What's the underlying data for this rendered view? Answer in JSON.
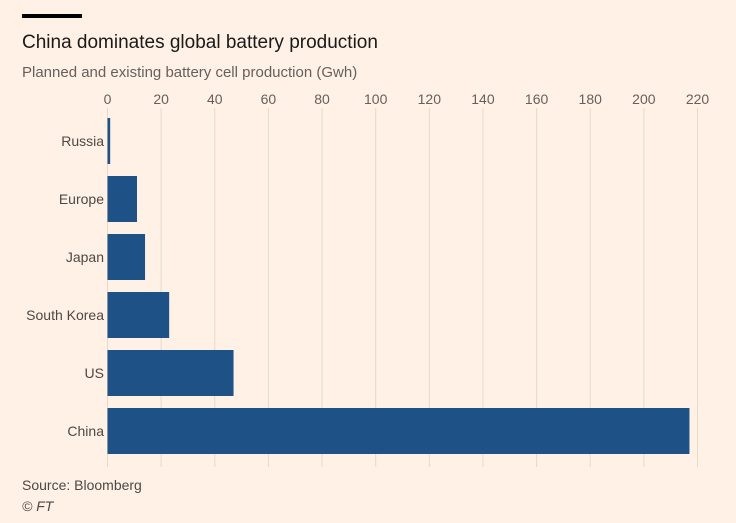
{
  "header": {
    "title": "China dominates global battery production",
    "subtitle": "Planned and existing battery cell production (Gwh)"
  },
  "footer": {
    "source": "Source: Bloomberg",
    "copyright": "© FT"
  },
  "colors": {
    "bar": "#1E5287",
    "background": "#FFF1E5",
    "grid": "#E6D9CE"
  },
  "chart_data": {
    "type": "bar",
    "orientation": "horizontal",
    "title": "China dominates global battery production",
    "subtitle": "Planned and existing battery cell production (Gwh)",
    "xlabel": "",
    "ylabel": "",
    "categories": [
      "Russia",
      "Europe",
      "Japan",
      "South Korea",
      "US",
      "China"
    ],
    "values": [
      1,
      11,
      14,
      23,
      47,
      217
    ],
    "xlim": [
      0,
      220
    ],
    "xticks": [
      0,
      20,
      40,
      60,
      80,
      100,
      120,
      140,
      160,
      180,
      200,
      220
    ],
    "xtick_labels": [
      "0",
      "20",
      "40",
      "60",
      "80",
      "100",
      "120",
      "140",
      "160",
      "180",
      "200",
      "220"
    ],
    "grid": true,
    "axis_position": "top",
    "source": "Source: Bloomberg"
  }
}
